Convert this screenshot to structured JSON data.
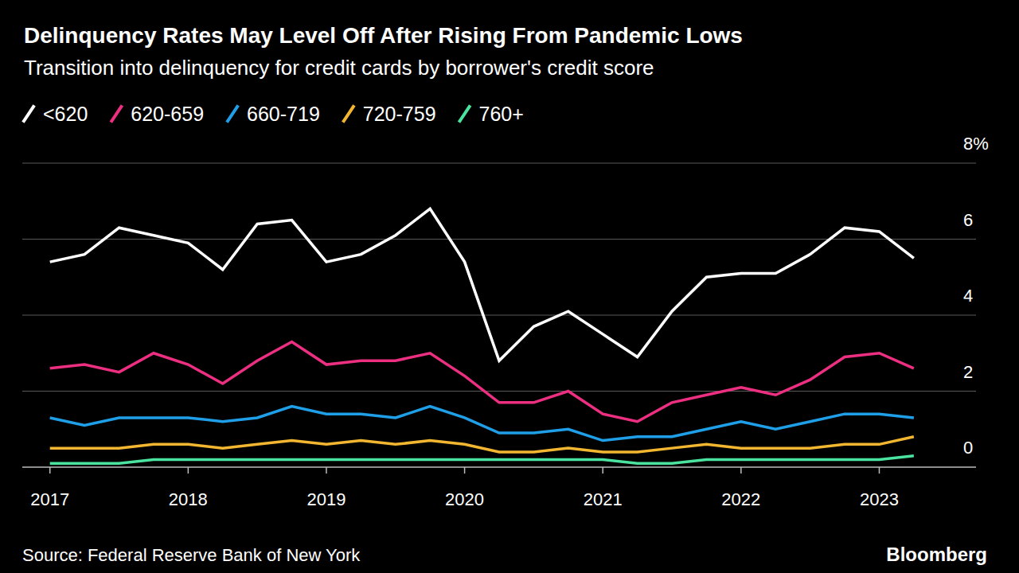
{
  "chart_data": {
    "type": "line",
    "title": "Delinquency Rates May Level Off After Rising From Pandemic Lows",
    "subtitle": "Transition into delinquency for credit cards by borrower's credit score",
    "source": "Source: Federal Reserve Bank of New York",
    "logo": "Bloomberg",
    "x": [
      2017,
      2017.25,
      2017.5,
      2017.75,
      2018,
      2018.25,
      2018.5,
      2018.75,
      2019,
      2019.25,
      2019.5,
      2019.75,
      2020,
      2020.25,
      2020.5,
      2020.75,
      2021,
      2021.25,
      2021.5,
      2021.75,
      2022,
      2022.25,
      2022.5,
      2022.75,
      2023,
      2023.25
    ],
    "xlim": [
      2016.8,
      2023.7
    ],
    "xticks": [
      2017,
      2018,
      2019,
      2020,
      2021,
      2022,
      2023
    ],
    "ylim": [
      0,
      8
    ],
    "yticks": [
      0,
      2,
      4,
      6,
      {
        "value": 8,
        "label": "8%"
      }
    ],
    "grid": true,
    "legend": "top-left",
    "series": [
      {
        "name": "<620",
        "color": "#ffffff",
        "values": [
          5.4,
          5.6,
          6.3,
          6.1,
          5.9,
          5.2,
          6.4,
          6.5,
          5.4,
          5.6,
          6.1,
          6.8,
          5.4,
          2.8,
          3.7,
          4.1,
          3.5,
          2.9,
          4.1,
          5.0,
          5.1,
          5.1,
          5.6,
          6.3,
          6.2,
          5.5
        ]
      },
      {
        "name": "620-659",
        "color": "#ec2f80",
        "values": [
          2.6,
          2.7,
          2.5,
          3.0,
          2.7,
          2.2,
          2.8,
          3.3,
          2.7,
          2.8,
          2.8,
          3.0,
          2.4,
          1.7,
          1.7,
          2.0,
          1.4,
          1.2,
          1.7,
          1.9,
          2.1,
          1.9,
          2.3,
          2.9,
          3.0,
          2.6
        ]
      },
      {
        "name": "660-719",
        "color": "#1f9fe8",
        "values": [
          1.3,
          1.1,
          1.3,
          1.3,
          1.3,
          1.2,
          1.3,
          1.6,
          1.4,
          1.4,
          1.3,
          1.6,
          1.3,
          0.9,
          0.9,
          1.0,
          0.7,
          0.8,
          0.8,
          1.0,
          1.2,
          1.0,
          1.2,
          1.4,
          1.4,
          1.3
        ]
      },
      {
        "name": "720-759",
        "color": "#f2b630",
        "values": [
          0.5,
          0.5,
          0.5,
          0.6,
          0.6,
          0.5,
          0.6,
          0.7,
          0.6,
          0.7,
          0.6,
          0.7,
          0.6,
          0.4,
          0.4,
          0.5,
          0.4,
          0.4,
          0.5,
          0.6,
          0.5,
          0.5,
          0.5,
          0.6,
          0.6,
          0.8
        ]
      },
      {
        "name": "760+",
        "color": "#4be3a0",
        "values": [
          0.1,
          0.1,
          0.1,
          0.2,
          0.2,
          0.2,
          0.2,
          0.2,
          0.2,
          0.2,
          0.2,
          0.2,
          0.2,
          0.2,
          0.2,
          0.2,
          0.2,
          0.1,
          0.1,
          0.2,
          0.2,
          0.2,
          0.2,
          0.2,
          0.2,
          0.3
        ]
      }
    ]
  }
}
